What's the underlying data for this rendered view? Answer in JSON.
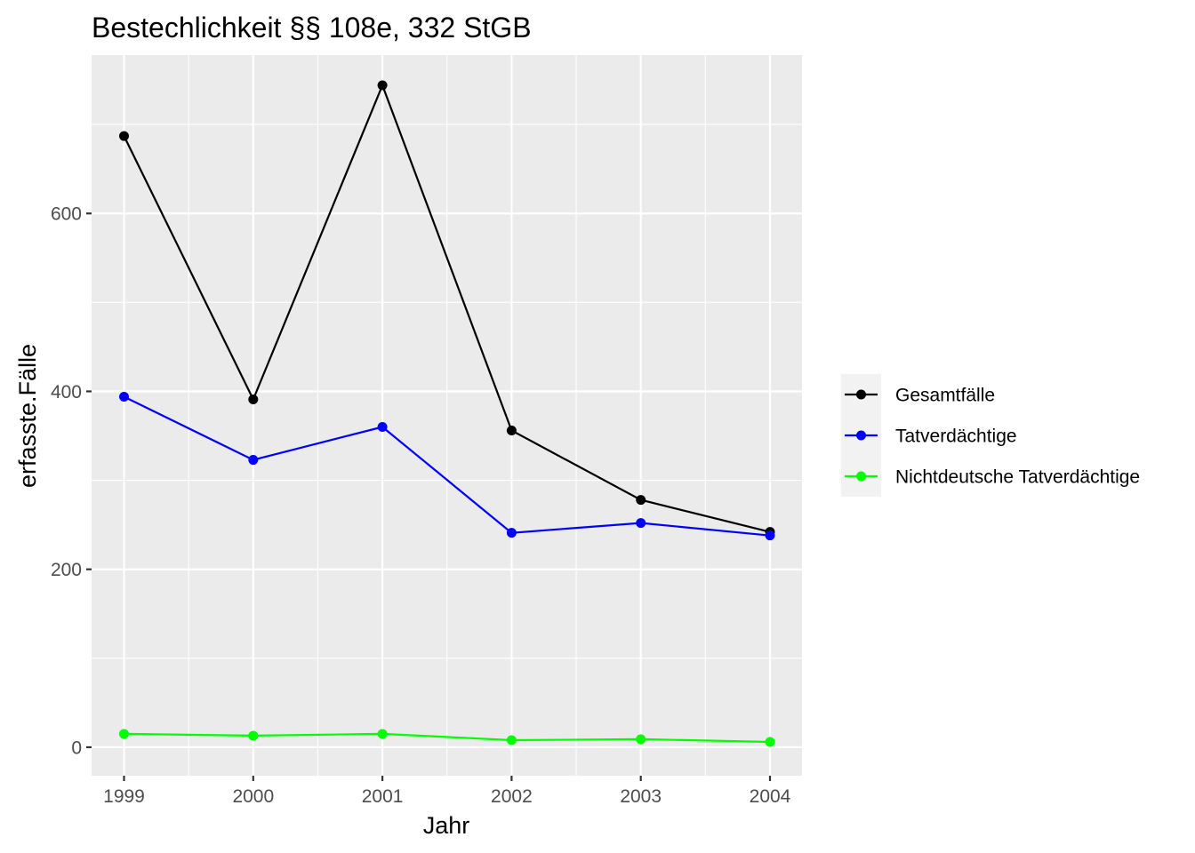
{
  "chart_data": {
    "type": "line",
    "title": "Bestechlichkeit §§ 108e, 332 StGB",
    "xlabel": "Jahr",
    "ylabel": "erfasste.Fälle",
    "x": [
      "1999",
      "2000",
      "2001",
      "2002",
      "2003",
      "2004"
    ],
    "yticks": [
      0,
      200,
      400,
      600
    ],
    "ylim": [
      -32,
      778
    ],
    "grid": true,
    "legend_position": "right",
    "series": [
      {
        "name": "Gesamtfälle",
        "color": "#000000",
        "values": [
          687,
          391,
          744,
          356,
          278,
          242
        ]
      },
      {
        "name": "Tatverdächtige",
        "color": "#0000ff",
        "values": [
          394,
          323,
          360,
          241,
          252,
          238
        ]
      },
      {
        "name": "Nichtdeutsche Tatverdächtige",
        "color": "#00ff00",
        "values": [
          15,
          13,
          15,
          8,
          9,
          6
        ]
      }
    ]
  }
}
